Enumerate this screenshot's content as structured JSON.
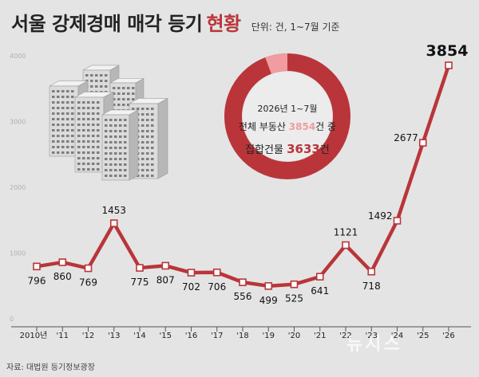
{
  "title": {
    "main": "서울 강제경매 매각 등기",
    "highlight": "현황",
    "unit": "단위: 건, 1~7월 기준"
  },
  "source": "자료: 대법원 등기정보광장",
  "watermark": "뉴시스",
  "donut": {
    "line1": "2026년 1~7월",
    "line2_prefix": "전체 부동산 ",
    "line2_total": "3854",
    "line2_suffix": "건 중",
    "line3_prefix": "집합건물 ",
    "line3_value": "3633",
    "line3_suffix": "건",
    "total": 3854,
    "part": 3633
  },
  "colors": {
    "accent": "#b9353a",
    "light": "#f09ca0",
    "axis": "#555555",
    "grid_label": "#b0b0b0"
  },
  "chart_data": {
    "type": "line",
    "categories": [
      "2010년",
      "'11",
      "'12",
      "'13",
      "'14",
      "'15",
      "'16",
      "'17",
      "'18",
      "'19",
      "'20",
      "'21",
      "'22",
      "'23",
      "'24",
      "'25",
      "'26"
    ],
    "values": [
      796,
      860,
      769,
      1453,
      775,
      807,
      702,
      706,
      556,
      499,
      525,
      641,
      1121,
      718,
      1492,
      2677,
      3854
    ],
    "value_labels": [
      "796",
      "860",
      "769",
      "1453",
      "775",
      "807",
      "702",
      "706",
      "556",
      "499",
      "525",
      "641",
      "1121",
      "718",
      "1492",
      "2677",
      "3854"
    ],
    "yticks": [
      0,
      1000,
      2000,
      3000,
      4000
    ],
    "ytick_labels": [
      "0",
      "1000",
      "2000",
      "3000",
      "4000"
    ],
    "ylim": [
      0,
      4000
    ],
    "xlabel": "",
    "ylabel": ""
  }
}
